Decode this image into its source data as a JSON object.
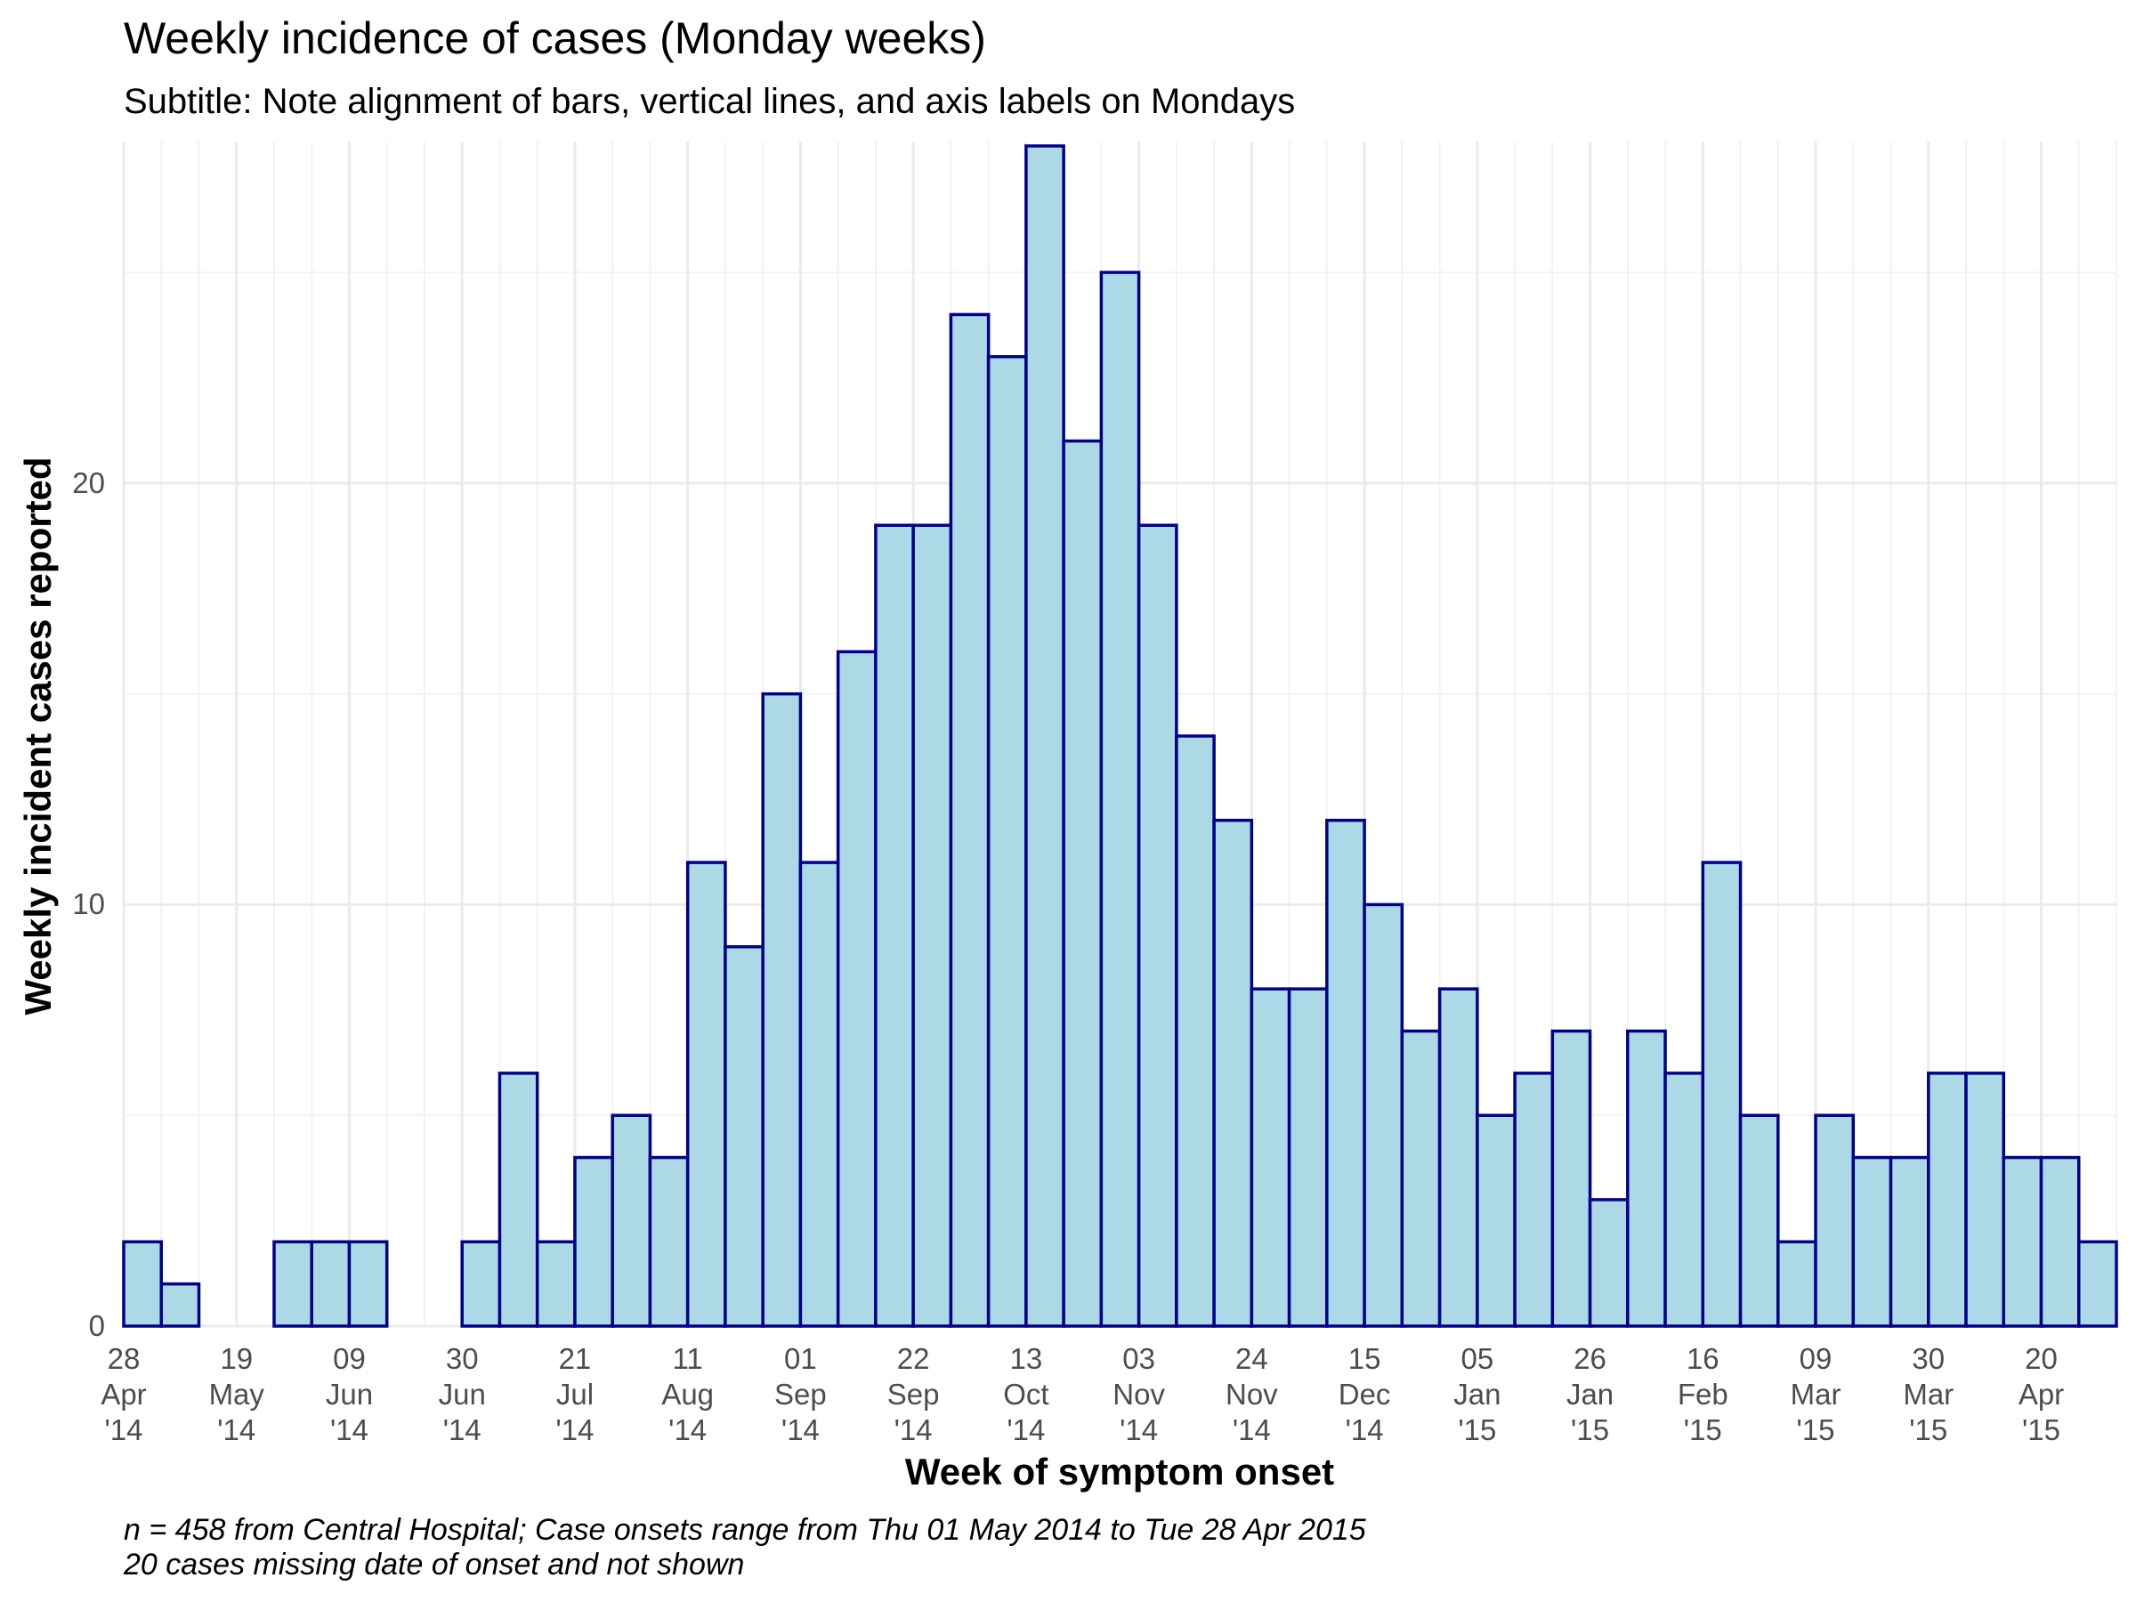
{
  "chart_data": {
    "type": "bar",
    "title": "Weekly incidence of cases (Monday weeks)",
    "subtitle": "Subtitle: Note alignment of bars, vertical lines, and axis labels on Mondays",
    "xlabel": "Week of symptom onset",
    "ylabel": "Weekly incident cases reported",
    "caption": [
      "n = 458 from Central Hospital; Case onsets range from Thu 01 May 2014 to Tue 28 Apr 2015",
      "20 cases missing date of onset and not shown"
    ],
    "categories": [
      "28\nApr\n'14",
      null,
      null,
      "19\nMay\n'14",
      null,
      null,
      "09\nJun\n'14",
      null,
      null,
      "30\nJun\n'14",
      null,
      null,
      "21\nJul\n'14",
      null,
      null,
      "11\nAug\n'14",
      null,
      null,
      "01\nSep\n'14",
      null,
      null,
      "22\nSep\n'14",
      null,
      null,
      "13\nOct\n'14",
      null,
      null,
      "03\nNov\n'14",
      null,
      null,
      "24\nNov\n'14",
      null,
      null,
      "15\nDec\n'14",
      null,
      null,
      "05\nJan\n'15",
      null,
      null,
      "26\nJan\n'15",
      null,
      null,
      "16\nFeb\n'15",
      null,
      null,
      "09\nMar\n'15",
      null,
      null,
      "30\nMar\n'15",
      null,
      null,
      "20\nApr\n'15",
      null
    ],
    "values": [
      2,
      1,
      0,
      0,
      2,
      2,
      2,
      0,
      0,
      2,
      6,
      2,
      4,
      5,
      4,
      11,
      9,
      15,
      11,
      16,
      19,
      19,
      24,
      23,
      28,
      21,
      25,
      19,
      14,
      12,
      8,
      8,
      12,
      10,
      7,
      8,
      5,
      6,
      7,
      3,
      7,
      6,
      11,
      5,
      2,
      5,
      4,
      4,
      6,
      6,
      4,
      4,
      2
    ],
    "color": "#add8e6",
    "edgecolor": "#00008b",
    "ylim": [
      0,
      28
    ],
    "yticks": [
      0,
      10,
      20
    ],
    "grid": true
  }
}
